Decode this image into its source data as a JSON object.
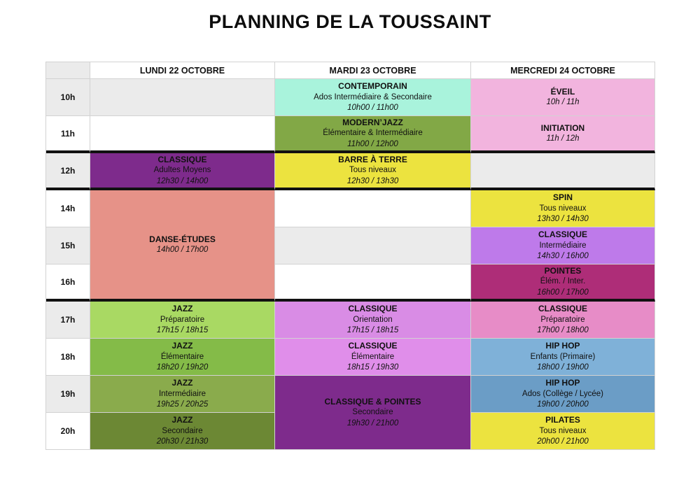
{
  "title": "PLANNING DE LA TOUSSAINT",
  "table": {
    "day_headers": [
      "LUNDI 22 OCTOBRE",
      "MARDI 23 OCTOBRE",
      "MERCREDI 24 OCTOBRE"
    ],
    "time_labels": [
      "10h",
      "11h",
      "12h",
      "14h",
      "15h",
      "16h",
      "17h",
      "18h",
      "19h",
      "20h"
    ],
    "cells": {
      "lundi_classique": {
        "title": "CLASSIQUE",
        "level": "Adultes Moyens",
        "hours": "12h30 / 14h00",
        "color": "#7e2b8c"
      },
      "lundi_danse_etudes": {
        "title": "DANSE-ÉTUDES",
        "level": "",
        "hours": "14h00 / 17h00",
        "color": "#e69288"
      },
      "lundi_jazz_preparatoire": {
        "title": "JAZZ",
        "level": "Préparatoire",
        "hours": "17h15 / 18h15",
        "color": "#a9d963"
      },
      "lundi_jazz_elementaire": {
        "title": "JAZZ",
        "level": "Élémentaire",
        "hours": "18h20 / 19h20",
        "color": "#84bb48"
      },
      "lundi_jazz_intermediaire": {
        "title": "JAZZ",
        "level": "Intermédiaire",
        "hours": "19h25 / 20h25",
        "color": "#8aab4c"
      },
      "lundi_jazz_secondaire": {
        "title": "JAZZ",
        "level": "Secondaire",
        "hours": "20h30 / 21h30",
        "color": "#6c8834"
      },
      "mardi_contemporain": {
        "title": "CONTEMPORAIN",
        "level": "Ados Intermédiaire & Secondaire",
        "hours": "10h00 / 11h00",
        "color": "#a9f3dc"
      },
      "mardi_modern_jazz": {
        "title": "MODERN’JAZZ",
        "level": "Élémentaire & Intermédiaire",
        "hours": "11h00 / 12h00",
        "color": "#82a846"
      },
      "mardi_barre_a_terre": {
        "title": "BARRE À TERRE",
        "level": "Tous niveaux",
        "hours": "12h30 / 13h30",
        "color": "#ece33f"
      },
      "mardi_classique_orientation": {
        "title": "CLASSIQUE",
        "level": "Orientation",
        "hours": "17h15 / 18h15",
        "color": "#d98ce5"
      },
      "mardi_classique_elementaire": {
        "title": "CLASSIQUE",
        "level": "Élémentaire",
        "hours": "18h15 / 19h30",
        "color": "#e08eea"
      },
      "mardi_classique_pointes": {
        "title": "CLASSIQUE & POINTES",
        "level": "Secondaire",
        "hours": "19h30 / 21h00",
        "color": "#7e2b8c"
      },
      "mercredi_eveil": {
        "title": "ÉVEIL",
        "level": "",
        "hours": "10h / 11h",
        "color": "#f2b4de"
      },
      "mercredi_initiation": {
        "title": "INITIATION",
        "level": "",
        "hours": "11h / 12h",
        "color": "#f2b4de"
      },
      "mercredi_spin": {
        "title": "SPIN",
        "level": "Tous niveaux",
        "hours": "13h30 / 14h30",
        "color": "#ece33f"
      },
      "mercredi_classique_intermediaire": {
        "title": "CLASSIQUE",
        "level": "Intermédiaire",
        "hours": "14h30 / 16h00",
        "color": "#be7aea"
      },
      "mercredi_pointes": {
        "title": "POINTES",
        "level": "Élém. / Inter.",
        "hours": "16h00 / 17h00",
        "color": "#ae2d78"
      },
      "mercredi_classique_preparatoire": {
        "title": "CLASSIQUE",
        "level": "Préparatoire",
        "hours": "17h00 / 18h00",
        "color": "#e78cc7"
      },
      "mercredi_hiphop_enfants": {
        "title": "HIP HOP",
        "level": "Enfants (Primaire)",
        "hours": "18h00 / 19h00",
        "color": "#7fb1d8"
      },
      "mercredi_hiphop_ados": {
        "title": "HIP HOP",
        "level": "Ados (Collège / Lycée)",
        "hours": "19h00 / 20h00",
        "color": "#6b9dc6"
      },
      "mercredi_pilates": {
        "title": "PILATES",
        "level": "Tous niveaux",
        "hours": "20h00 / 21h00",
        "color": "#ece33f"
      }
    }
  },
  "colors": {
    "empty_row_gray": "#ebebeb",
    "grid_line": "#d2d2d2",
    "section_divider": "#111111"
  }
}
